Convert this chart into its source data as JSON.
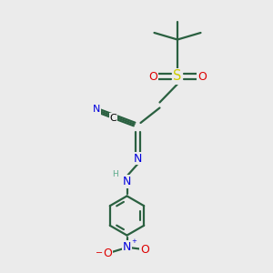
{
  "bg_color": "#ebebeb",
  "bond_color": "#2a6040",
  "colors": {
    "C": "#000000",
    "N": "#0000dd",
    "O": "#dd0000",
    "S": "#cccc00",
    "H": "#5aaa8a"
  },
  "figsize": [
    3.0,
    3.0
  ],
  "dpi": 100,
  "xlim": [
    0,
    10
  ],
  "ylim": [
    0,
    10
  ]
}
